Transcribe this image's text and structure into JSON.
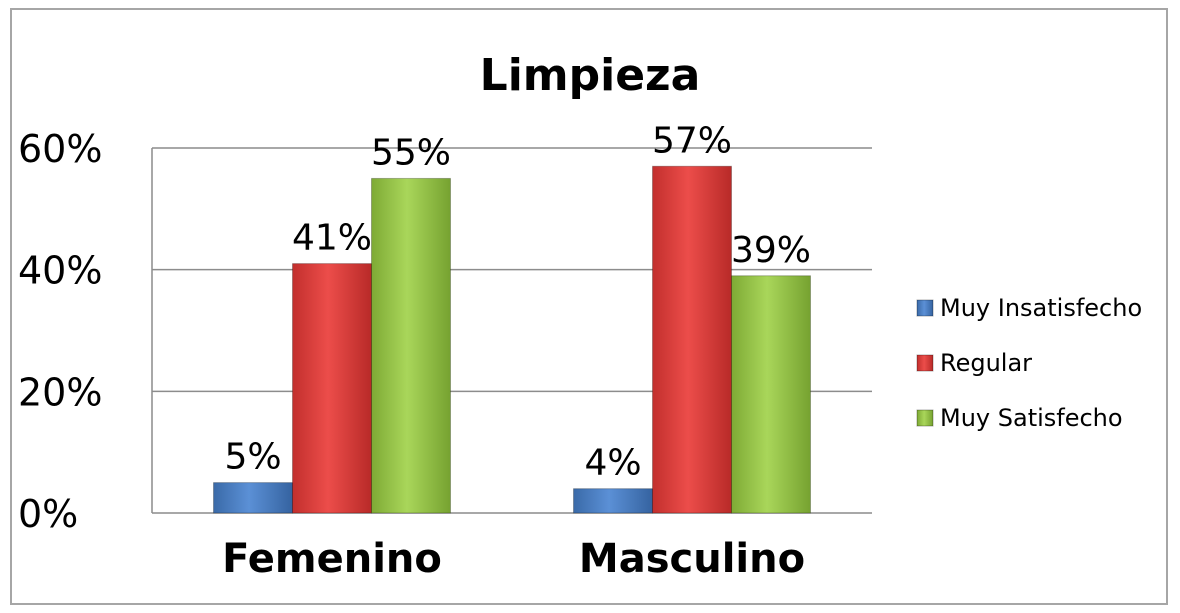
{
  "chart_data": {
    "type": "bar",
    "title": "Limpieza",
    "categories": [
      "Femenino",
      "Masculino"
    ],
    "series": [
      {
        "name": "Muy Insatisfecho",
        "values": [
          5,
          4
        ],
        "color": "#4a7ebb"
      },
      {
        "name": "Regular",
        "values": [
          41,
          57
        ],
        "color": "#d93a38"
      },
      {
        "name": "Muy Satisfecho",
        "values": [
          55,
          39
        ],
        "color": "#92c045"
      }
    ],
    "data_labels": [
      [
        "5%",
        "4%"
      ],
      [
        "41%",
        "57%"
      ],
      [
        "55%",
        "39%"
      ]
    ],
    "y_ticks": [
      0,
      20,
      40,
      60
    ],
    "y_tick_labels": [
      "0%",
      "20%",
      "40%",
      "60%"
    ],
    "ylim": [
      0,
      60
    ],
    "grid": true,
    "legend_position": "right"
  }
}
